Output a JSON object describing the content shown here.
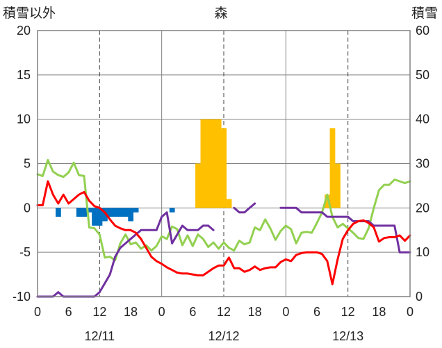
{
  "chart_data": {
    "type": "bar+line",
    "title": "森",
    "left_axis_label": "積雪以外",
    "right_axis_label": "積雪",
    "left_ylim": [
      -10,
      20
    ],
    "left_ticks": [
      "20",
      "15",
      "10",
      "5",
      "0",
      "-5",
      "-10"
    ],
    "right_ylim": [
      0,
      60
    ],
    "right_ticks": [
      "60",
      "50",
      "40",
      "30",
      "20",
      "10",
      "0"
    ],
    "x_hours": [
      0,
      72
    ],
    "x_tick_labels": [
      "0",
      "6",
      "12",
      "18",
      "0",
      "6",
      "12",
      "18",
      "0",
      "6",
      "12",
      "18",
      "0"
    ],
    "date_labels": [
      "12/11",
      "12/12",
      "12/13"
    ],
    "grid": {
      "day_lines": [
        24,
        48
      ],
      "dashed_lines": [
        12,
        36,
        60
      ]
    },
    "colors": {
      "temperature": "#ff0000",
      "sunshine": "#92d050",
      "snow_depth": "#7030a0",
      "precipitation": "#ffc000",
      "snowfall_negative": "#0070c0",
      "grid": "#808080"
    },
    "precipitation_bars": {
      "hours": [
        31,
        32,
        33,
        34,
        35,
        36,
        37,
        56,
        57,
        58
      ],
      "values": [
        5.0,
        10.0,
        10.0,
        10.0,
        10.0,
        9.0,
        1.0,
        1.5,
        9.0,
        5.0
      ]
    },
    "negative_bars": {
      "hours": [
        4,
        8,
        9,
        10,
        11,
        12,
        13,
        14,
        15,
        16,
        17,
        18,
        19,
        26
      ],
      "values": [
        -1.0,
        -1.0,
        -1.0,
        -0.5,
        -2.0,
        -2.0,
        -1.5,
        -1.0,
        -1.0,
        -1.0,
        -1.0,
        -1.5,
        -0.5,
        -0.5
      ]
    },
    "temperature": {
      "x": [
        0,
        1,
        2,
        3,
        4,
        5,
        6,
        7,
        8,
        9,
        10,
        11,
        12,
        13,
        14,
        15,
        16,
        17,
        18,
        19,
        20,
        21,
        22,
        23,
        24,
        25,
        26,
        27,
        28,
        29,
        30,
        31,
        32,
        33,
        34,
        35,
        36,
        37,
        38,
        39,
        40,
        41,
        42,
        43,
        44,
        45,
        46,
        47,
        48,
        49,
        50,
        51,
        52,
        53,
        54,
        55,
        56,
        57,
        58,
        59,
        60,
        61,
        62,
        63,
        64,
        65,
        66,
        67,
        68,
        69,
        70,
        71,
        72
      ],
      "values": [
        0.3,
        0.3,
        3.0,
        1.5,
        0.5,
        1.5,
        0.5,
        1.0,
        1.5,
        1.8,
        0.8,
        0.2,
        0.0,
        -0.5,
        -1.3,
        -2.0,
        -2.3,
        -2.5,
        -2.5,
        -2.8,
        -3.5,
        -4.5,
        -5.5,
        -6.0,
        -6.3,
        -6.7,
        -7.0,
        -7.3,
        -7.4,
        -7.4,
        -7.5,
        -7.6,
        -7.6,
        -7.2,
        -6.8,
        -6.5,
        -6.5,
        -5.6,
        -6.8,
        -6.8,
        -7.2,
        -7.0,
        -6.6,
        -7.0,
        -6.8,
        -6.7,
        -6.7,
        -6.1,
        -5.8,
        -6.0,
        -5.3,
        -5.1,
        -5.0,
        -5.0,
        -5.0,
        -5.2,
        -6.0,
        -8.6,
        -5.8,
        -3.5,
        -2.5,
        -1.8,
        -1.5,
        -1.4,
        -1.7,
        -2.2,
        -3.8,
        -3.4,
        -3.3,
        -3.3,
        -3.1,
        -3.7,
        -3.1
      ]
    },
    "sunshine": {
      "x": [
        0,
        1,
        2,
        3,
        4,
        5,
        6,
        7,
        8,
        9,
        10,
        11,
        12,
        13,
        14,
        15,
        16,
        17,
        18,
        19,
        20,
        21,
        22,
        23,
        24,
        25,
        26,
        27,
        28,
        29,
        30,
        31,
        32,
        33,
        34,
        35,
        36,
        37,
        38,
        39,
        40,
        41,
        42,
        43,
        44,
        45,
        46,
        47,
        48,
        49,
        50,
        51,
        52,
        53,
        54,
        55,
        56,
        57,
        58,
        59,
        60,
        61,
        62,
        63,
        64,
        65,
        66,
        67,
        68,
        69,
        70,
        71,
        72
      ],
      "values": [
        3.8,
        3.6,
        5.4,
        4.1,
        3.7,
        3.5,
        4.0,
        5.1,
        3.7,
        3.6,
        -2.2,
        -2.3,
        -3.0,
        -5.6,
        -5.5,
        -5.9,
        -4.0,
        -3.0,
        -4.1,
        -3.9,
        -4.6,
        -4.2,
        -4.8,
        -4.3,
        -3.2,
        -3.5,
        -2.1,
        -2.4,
        -4.2,
        -3.1,
        -4.3,
        -3.0,
        -3.5,
        -4.4,
        -3.9,
        -4.6,
        -3.9,
        -4.5,
        -4.8,
        -3.7,
        -4.1,
        -3.9,
        -2.2,
        -2.5,
        -1.3,
        -2.3,
        -3.6,
        -2.6,
        -2.0,
        -2.4,
        -4.0,
        -2.8,
        -2.7,
        -2.8,
        -1.7,
        -0.5,
        1.5,
        -1.0,
        -2.2,
        -1.8,
        -2.3,
        -2.8,
        -3.4,
        -3.5,
        -2.3,
        0.0,
        2.0,
        2.6,
        2.6,
        3.2,
        3.0,
        2.8,
        3.0
      ]
    },
    "snow_depth": {
      "x": [
        0,
        1,
        2,
        3,
        4,
        5,
        6,
        7,
        8,
        9,
        10,
        11,
        12,
        13,
        14,
        15,
        16,
        17,
        18,
        19,
        20,
        21,
        22,
        23,
        24,
        25,
        26,
        27,
        28,
        29,
        30,
        31,
        32,
        33,
        34,
        35,
        36,
        37,
        38,
        39,
        40,
        41,
        42
      ],
      "values": [
        0,
        0,
        0,
        0,
        1,
        0,
        0,
        0,
        0,
        0,
        0,
        0,
        1,
        3,
        5,
        9,
        11,
        12,
        13,
        14,
        15,
        15,
        15,
        15,
        18,
        19,
        12,
        14,
        16,
        15,
        15,
        15,
        16,
        16,
        15,
        null,
        null,
        null,
        20,
        19,
        19,
        20,
        21
      ]
    },
    "snow_depth_day3": {
      "x": [
        47,
        48,
        49,
        50,
        51,
        52,
        53,
        54,
        55,
        56,
        57,
        58,
        59,
        60,
        61,
        62,
        63,
        64,
        65,
        66,
        67,
        68,
        69,
        70,
        71,
        72
      ],
      "values": [
        20,
        20,
        20,
        20,
        19,
        19,
        19,
        19,
        19,
        18,
        18,
        18,
        18,
        18,
        17,
        17,
        17,
        17,
        16,
        16,
        16,
        16,
        16,
        10,
        10,
        10
      ]
    }
  }
}
